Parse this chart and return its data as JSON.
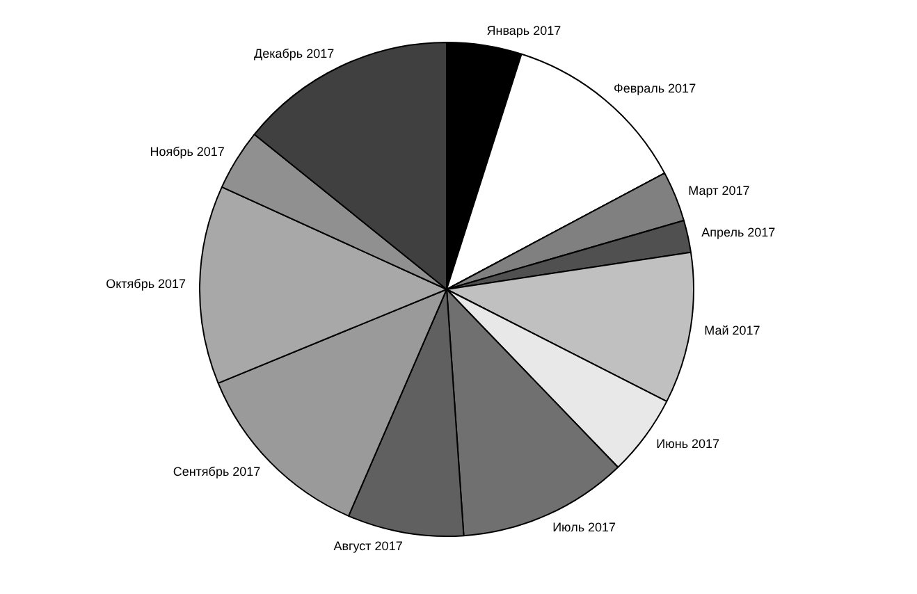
{
  "chart_data": {
    "type": "pie",
    "categories": [
      "Январь 2017",
      "Февраль 2017",
      "Март 2017",
      "Апрель 2017",
      "Май 2017",
      "Июнь 2017",
      "Июль 2017",
      "Август 2017",
      "Сентябрь 2017",
      "Октябрь 2017",
      "Ноябрь 2017",
      "Декабрь 2017"
    ],
    "values": [
      4.9,
      12.3,
      3.3,
      2.1,
      9.9,
      5.3,
      11.1,
      7.6,
      12.3,
      13.0,
      4.0,
      14.2
    ],
    "colors": [
      "#000000",
      "#ffffff",
      "#808080",
      "#505050",
      "#c0c0c0",
      "#e8e8e8",
      "#707070",
      "#606060",
      "#9a9a9a",
      "#a8a8a8",
      "#909090",
      "#404040"
    ],
    "legend": false
  }
}
